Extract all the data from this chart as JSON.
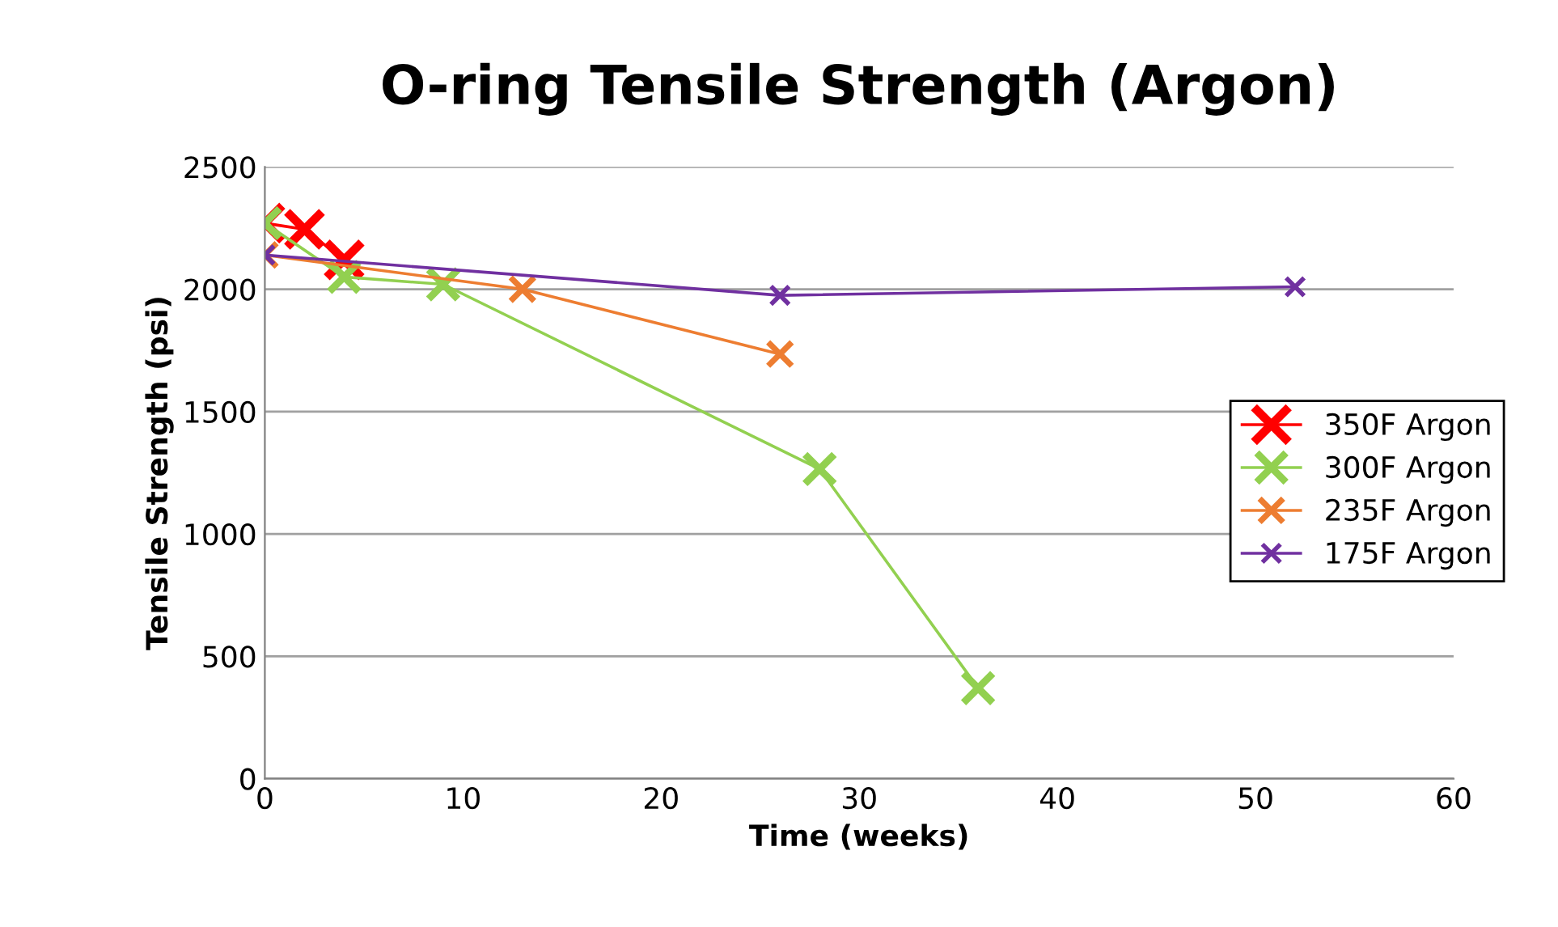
{
  "chart_data": {
    "type": "line",
    "title": "O-ring Tensile Strength (Argon)",
    "xlabel": "Time (weeks)",
    "ylabel": "Tensile Strength (psi)",
    "xlim": [
      0,
      60
    ],
    "xticks": [
      0,
      10,
      20,
      30,
      40,
      50,
      60
    ],
    "ylim": [
      0,
      2500
    ],
    "yticks": [
      0,
      500,
      1000,
      1500,
      2000,
      2500
    ],
    "grid": "y",
    "legend": "right",
    "marker": "cross",
    "line_style": "solid",
    "series": [
      {
        "name": "350F Argon",
        "color": "#ff0000",
        "x": [
          0,
          2,
          4
        ],
        "values": [
          2270,
          2245,
          2120
        ]
      },
      {
        "name": "300F Argon",
        "color": "#92d050",
        "x": [
          0,
          4,
          9,
          28,
          36
        ],
        "values": [
          2270,
          2050,
          2020,
          1265,
          370
        ]
      },
      {
        "name": "235F Argon",
        "color": "#ed7d31",
        "x": [
          0,
          13,
          26
        ],
        "values": [
          2140,
          2000,
          1735
        ]
      },
      {
        "name": "175F Argon",
        "color": "#7030a0",
        "x": [
          0,
          26,
          52
        ],
        "values": [
          2140,
          1975,
          2010
        ]
      }
    ]
  }
}
